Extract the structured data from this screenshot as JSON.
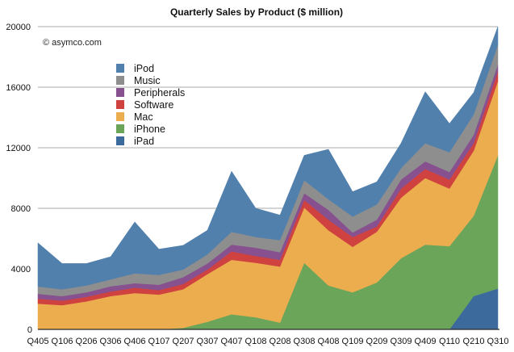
{
  "chart_data": {
    "type": "area",
    "stacked": true,
    "title": "Quarterly Sales by Product ($ million)",
    "credit": "© asymco.com",
    "xlabel": "",
    "ylabel": "",
    "ylim": [
      0,
      20000
    ],
    "yticks": [
      0,
      4000,
      8000,
      12000,
      16000,
      20000
    ],
    "ytick_labels": [
      "0",
      "4000",
      "8000",
      "12000",
      "16000",
      "20000"
    ],
    "grid": true,
    "legend_position": "top-left",
    "categories": [
      "Q405",
      "Q106",
      "Q206",
      "Q306",
      "Q406",
      "Q107",
      "Q207",
      "Q307",
      "Q407",
      "Q108",
      "Q208",
      "Q308",
      "Q408",
      "Q109",
      "Q209",
      "Q309",
      "Q409",
      "Q110",
      "Q210",
      "Q310"
    ],
    "stack_order_bottom_to_top": [
      "iPad",
      "iPhone",
      "Mac",
      "Software",
      "Peripherals",
      "Music",
      "iPod"
    ],
    "legend_order": [
      "iPod",
      "Music",
      "Peripherals",
      "Software",
      "Mac",
      "iPhone",
      "iPad"
    ],
    "series": [
      {
        "name": "iPad",
        "color": "#3c6a9c",
        "values": [
          0,
          0,
          0,
          0,
          0,
          0,
          0,
          0,
          0,
          0,
          0,
          0,
          0,
          0,
          0,
          0,
          0,
          0,
          2200,
          2700
        ]
      },
      {
        "name": "iPhone",
        "color": "#6aa55a",
        "values": [
          0,
          0,
          0,
          0,
          0,
          0,
          100,
          500,
          1000,
          800,
          450,
          4400,
          2900,
          2450,
          3100,
          4700,
          5600,
          5500,
          5300,
          8800
        ]
      },
      {
        "name": "Mac",
        "color": "#ecad4e",
        "values": [
          1700,
          1600,
          1850,
          2200,
          2400,
          2300,
          2550,
          3150,
          3600,
          3600,
          3700,
          3650,
          3650,
          3000,
          3350,
          4000,
          4400,
          3800,
          4300,
          4900
        ]
      },
      {
        "name": "Software",
        "color": "#d0423f",
        "values": [
          330,
          300,
          300,
          300,
          350,
          300,
          350,
          300,
          550,
          450,
          450,
          500,
          700,
          650,
          350,
          600,
          600,
          600,
          500,
          650
        ]
      },
      {
        "name": "Peripherals",
        "color": "#87508f",
        "values": [
          320,
          300,
          300,
          350,
          300,
          350,
          450,
          400,
          450,
          550,
          500,
          450,
          650,
          300,
          450,
          600,
          500,
          500,
          550,
          450
        ]
      },
      {
        "name": "Music",
        "color": "#8e8e8e",
        "values": [
          480,
          450,
          450,
          450,
          650,
          650,
          500,
          600,
          850,
          700,
          800,
          850,
          700,
          1050,
          1000,
          750,
          1200,
          1300,
          1350,
          1300
        ]
      },
      {
        "name": "iPod",
        "color": "#5180ad",
        "values": [
          2890,
          1700,
          1450,
          1500,
          3400,
          1700,
          1600,
          1600,
          4000,
          1900,
          1650,
          1650,
          3300,
          1650,
          1500,
          1650,
          3400,
          1900,
          1450,
          1200
        ]
      }
    ]
  }
}
